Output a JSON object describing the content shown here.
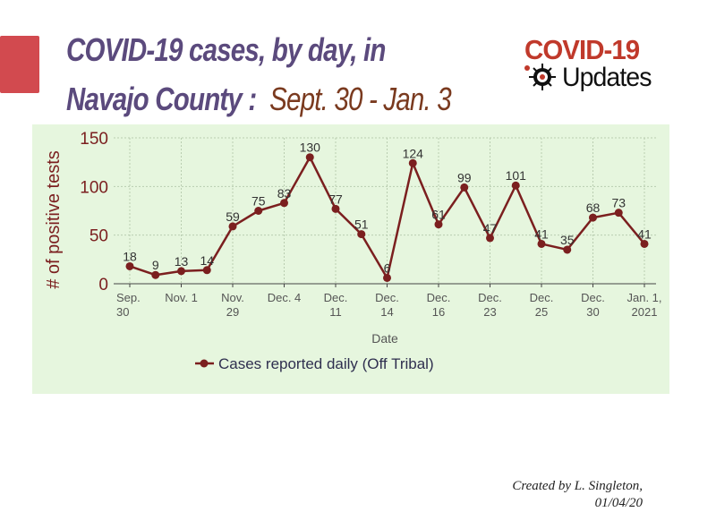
{
  "header": {
    "title_line1": "COVID-19 cases, by day, in",
    "title_line2": "Navajo County :",
    "title_range": "Sept. 30 - Jan. 3"
  },
  "logo": {
    "top_text": "COVID-19",
    "bottom_text": "Updates",
    "icon": "virus-icon"
  },
  "credit": {
    "line1": "Created by L. Singleton,",
    "line2": "01/04/20"
  },
  "colors": {
    "title": "#5b4a7d",
    "title_range": "#7a3a1f",
    "series": "#7b1f1f",
    "panel_bg": "#e6f6de",
    "accent": "#d24a4f"
  },
  "chart_data": {
    "type": "line",
    "xlabel": "Date",
    "ylabel": "# of positive tests",
    "ylim": [
      0,
      150
    ],
    "yticks": [
      0,
      50,
      100,
      150
    ],
    "grid": true,
    "legend_position": "bottom-left",
    "tick_labels": [
      {
        "index": 0,
        "line1": "Sep.",
        "line2": "30"
      },
      {
        "index": 2,
        "line1": "Nov. 1",
        "line2": ""
      },
      {
        "index": 4,
        "line1": "Nov.",
        "line2": "29"
      },
      {
        "index": 6,
        "line1": "Dec. 4",
        "line2": ""
      },
      {
        "index": 8,
        "line1": "Dec.",
        "line2": "11"
      },
      {
        "index": 10,
        "line1": "Dec.",
        "line2": "14"
      },
      {
        "index": 12,
        "line1": "Dec.",
        "line2": "16"
      },
      {
        "index": 14,
        "line1": "Dec.",
        "line2": "23"
      },
      {
        "index": 16,
        "line1": "Dec.",
        "line2": "25"
      },
      {
        "index": 18,
        "line1": "Dec.",
        "line2": "30"
      },
      {
        "index": 20,
        "line1": "Jan. 1,",
        "line2": "2021"
      }
    ],
    "series": [
      {
        "name": "Cases reported daily (Off Tribal)",
        "values": [
          18,
          9,
          13,
          14,
          59,
          75,
          83,
          130,
          77,
          51,
          6,
          124,
          61,
          99,
          47,
          101,
          41,
          35,
          68,
          73,
          41
        ]
      }
    ]
  }
}
